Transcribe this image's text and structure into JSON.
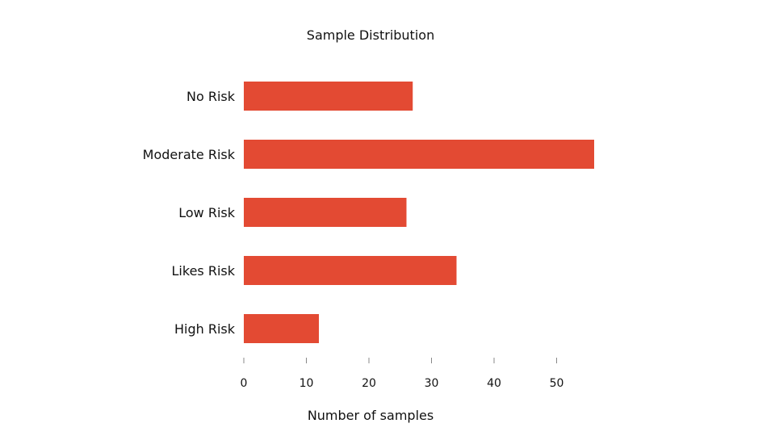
{
  "chart_data": {
    "type": "bar",
    "orientation": "horizontal",
    "title": "Sample Distribution",
    "xlabel": "Number of samples",
    "ylabel": "",
    "categories": [
      "No Risk",
      "Moderate Risk",
      "Low Risk",
      "Likes Risk",
      "High Risk"
    ],
    "values": [
      27,
      56,
      26,
      34,
      12
    ],
    "xlim": [
      0,
      56
    ],
    "xticks": [
      0,
      10,
      20,
      30,
      40,
      50
    ],
    "grid": false,
    "bar_color": "#e34a33"
  }
}
